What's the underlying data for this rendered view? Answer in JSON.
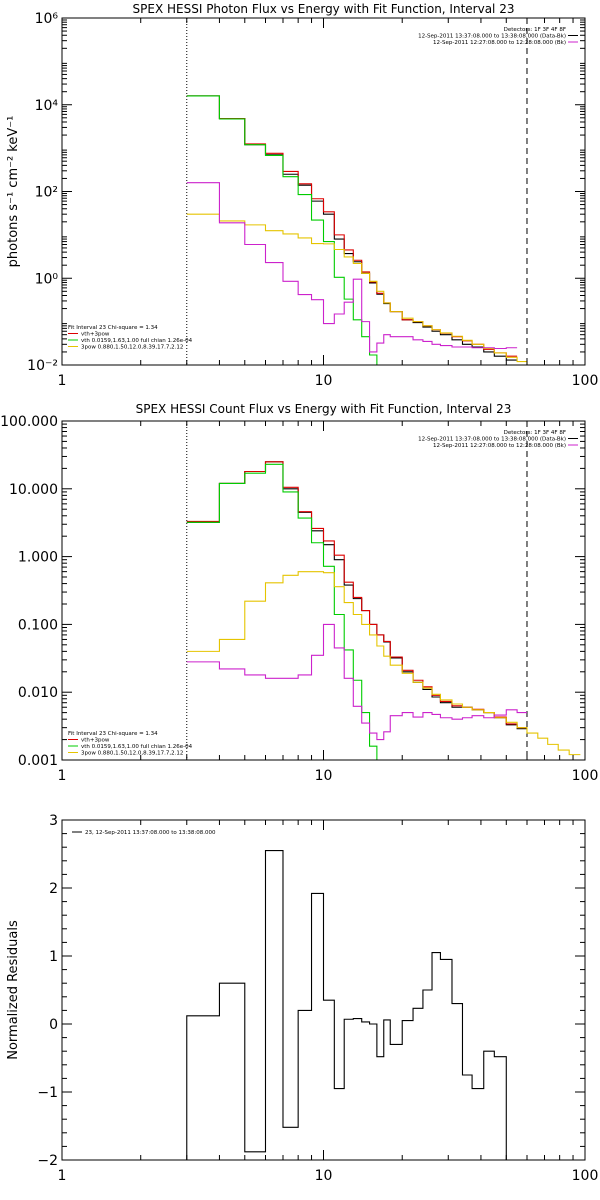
{
  "chart_data": [
    {
      "type": "line",
      "title": "SPEX HESSI Photon Flux vs Energy with Fit Function, Interval 23",
      "xlabel": "",
      "ylabel": "photons s⁻¹ cm⁻² keV⁻¹",
      "xscale": "log",
      "yscale": "log",
      "xlim": [
        1,
        100
      ],
      "ylim": [
        0.01,
        1000000
      ],
      "xticks": [
        1,
        10,
        100
      ],
      "xtick_labels": [
        "1",
        "10",
        "100"
      ],
      "yticks": [
        0.01,
        1,
        100,
        10000,
        1000000
      ],
      "ytick_labels": [
        "10⁻²",
        "10⁰",
        "10²",
        "10⁴",
        "10⁶"
      ],
      "vlines": [
        {
          "x": 3,
          "style": "dotted"
        },
        {
          "x": 60,
          "style": "dashed"
        }
      ],
      "header_lines": [
        "Detectors: 1F 3F 4F 8F",
        "12-Sep-2011 13:37:08.000 to 13:38:08.000 (Data-Bk)",
        "12-Sep-2011 12:27:08.000 to 12:28:08.000 (Bk)"
      ],
      "legend_lines": [
        "Fit Interval 23   Chi-square = 1.34",
        "vth+3pow",
        "vth 0.0159,1.63,1.00  full chian 1.26e-04",
        "3pow 0.880,1.50,12.0,8.39,17.7,2.12"
      ],
      "edges": [
        3,
        4,
        5,
        6,
        7,
        8,
        9,
        10,
        11,
        12,
        13,
        14,
        15,
        16,
        17,
        18,
        20,
        22,
        24,
        26,
        28,
        31,
        34,
        37,
        41,
        45,
        50,
        55,
        60,
        66,
        72,
        79
      ],
      "series": [
        {
          "name": "vth+3pow",
          "color": "#000000",
          "values": [
            16000,
            4800,
            1200,
            700,
            250,
            140,
            60,
            30,
            8,
            3.7,
            2.4,
            1.3,
            0.78,
            0.43,
            0.26,
            0.17,
            0.11,
            0.095,
            0.075,
            0.06,
            0.05,
            0.038,
            0.03,
            0.026,
            0.02,
            0.016,
            0.013
          ]
        },
        {
          "name": "",
          "color": "#dd0000",
          "values": [
            16000,
            4800,
            1250,
            760,
            290,
            150,
            68,
            34,
            10,
            4.5,
            2.6,
            1.4,
            0.82,
            0.45,
            0.27,
            0.17,
            0.11,
            0.1,
            0.08,
            0.065,
            0.054,
            0.045,
            0.036,
            0.03,
            0.023,
            0.019,
            0.016
          ]
        },
        {
          "name": "vth 0.0159,1.63,1.00  full chian 1.26e-04",
          "color": "#00cc00",
          "values": [
            16000,
            4700,
            1200,
            680,
            220,
            85,
            22,
            7,
            1.05,
            0.33,
            0.11,
            0.045,
            0.017,
            0.01,
            0.01
          ]
        },
        {
          "name": "3pow 0.880,1.50,12.0,8.39,17.7,2.12",
          "color": "#e5c400",
          "values": [
            30,
            21,
            17,
            12.5,
            10.5,
            8.5,
            6.3,
            6.2,
            4.6,
            3.1,
            2.2,
            1.3,
            0.85,
            0.5,
            0.27,
            0.17,
            0.12,
            0.1,
            0.08,
            0.065,
            0.055,
            0.046,
            0.037,
            0.03,
            0.024,
            0.019,
            0.015,
            0.012,
            0.01,
            0.008,
            0.0066
          ]
        },
        {
          "name": "",
          "color": "#cc22cc",
          "values": [
            160,
            19,
            6,
            2.3,
            0.85,
            0.42,
            0.32,
            0.09,
            0.15,
            0.28,
            0.95,
            0.1,
            0.02,
            0.032,
            0.05,
            0.045,
            0.045,
            0.038,
            0.035,
            0.03,
            0.028,
            0.026,
            0.026,
            0.025,
            0.025,
            0.024,
            0.025
          ]
        }
      ]
    },
    {
      "type": "line",
      "title": "SPEX HESSI Count Flux vs Energy with Fit Function, Interval 23",
      "xlabel": "",
      "ylabel": "",
      "xscale": "log",
      "yscale": "log",
      "xlim": [
        1,
        100
      ],
      "ylim": [
        0.001,
        100
      ],
      "xticks": [
        1,
        10,
        100
      ],
      "xtick_labels": [
        "1",
        "10",
        "100"
      ],
      "yticks": [
        0.001,
        0.01,
        0.1,
        1,
        10,
        100
      ],
      "ytick_labels": [
        "0.001",
        "0.010",
        "0.100",
        "1.000",
        "10.000",
        "100.000"
      ],
      "vlines": [
        {
          "x": 3,
          "style": "dotted"
        },
        {
          "x": 60,
          "style": "dashed"
        }
      ],
      "header_lines": [
        "Detectors: 1F 3F 4F 8F",
        "12-Sep-2011 13:37:08.000 to 13:38:08.000 (Data-Bk)",
        "12-Sep-2011 12:27:08.000 to 12:28:08.000 (Bk)"
      ],
      "legend_lines": [
        "Fit Interval 23   Chi-square = 1.34",
        "vth+3pow",
        "vth 0.0159,1.63,1.00  full chian 1.26e-04",
        "3pow 0.880,1.50,12.0,8.39,17.7,2.12"
      ],
      "edges": [
        3,
        4,
        5,
        6,
        7,
        8,
        9,
        10,
        11,
        12,
        13,
        14,
        15,
        16,
        17,
        18,
        20,
        22,
        24,
        26,
        28,
        31,
        34,
        37,
        41,
        45,
        50,
        55,
        60,
        66,
        72,
        79,
        87,
        96
      ],
      "series": [
        {
          "name": "vth+3pow",
          "color": "#000000",
          "values": [
            3.2,
            12,
            18,
            25,
            10,
            4.5,
            2.4,
            1.5,
            0.9,
            0.38,
            0.24,
            0.16,
            0.1,
            0.07,
            0.055,
            0.032,
            0.02,
            0.014,
            0.011,
            0.0085,
            0.007,
            0.006,
            0.006,
            0.0055,
            0.005,
            0.0042,
            0.0033,
            0.0029
          ]
        },
        {
          "name": "",
          "color": "#dd0000",
          "values": [
            3.3,
            12,
            18,
            25,
            10.5,
            4.6,
            2.6,
            1.7,
            1.05,
            0.42,
            0.25,
            0.16,
            0.1,
            0.07,
            0.056,
            0.033,
            0.021,
            0.015,
            0.012,
            0.009,
            0.0073,
            0.0063,
            0.006,
            0.0056,
            0.005,
            0.0043,
            0.0034,
            0.003
          ]
        },
        {
          "name": "vth 0.0159,1.63,1.00  full chian 1.26e-04",
          "color": "#00cc00",
          "values": [
            3.2,
            12,
            17,
            23,
            9,
            3.7,
            1.6,
            0.72,
            0.14,
            0.042,
            0.015,
            0.005,
            0.0016,
            0.001
          ]
        },
        {
          "name": "3pow 0.880,1.50,12.0,8.39,17.7,2.12",
          "color": "#e5c400",
          "values": [
            0.04,
            0.06,
            0.22,
            0.41,
            0.53,
            0.6,
            0.6,
            0.58,
            0.36,
            0.21,
            0.14,
            0.1,
            0.07,
            0.048,
            0.034,
            0.025,
            0.019,
            0.014,
            0.0115,
            0.0093,
            0.0077,
            0.0067,
            0.006,
            0.0055,
            0.005,
            0.0042,
            0.0036,
            0.003,
            0.0025,
            0.0021,
            0.0017,
            0.0014,
            0.0012
          ]
        },
        {
          "name": "",
          "color": "#cc22cc",
          "values": [
            0.028,
            0.022,
            0.018,
            0.016,
            0.016,
            0.018,
            0.035,
            0.1,
            0.045,
            0.016,
            0.0062,
            0.0035,
            0.0025,
            0.002,
            0.0026,
            0.0045,
            0.005,
            0.0043,
            0.005,
            0.0047,
            0.0042,
            0.004,
            0.0042,
            0.0045,
            0.0042,
            0.0046,
            0.0055,
            0.005
          ]
        }
      ]
    },
    {
      "type": "line",
      "title": "",
      "xlabel": "",
      "ylabel": "Normalized Residuals",
      "xscale": "log",
      "yscale": "linear",
      "xlim": [
        1,
        100
      ],
      "ylim": [
        -2,
        3
      ],
      "xticks": [
        1,
        10,
        100
      ],
      "xtick_labels": [
        "1",
        "10",
        "100"
      ],
      "yticks": [
        -2,
        -1,
        0,
        1,
        2,
        3
      ],
      "ytick_labels": [
        "−2",
        "−1",
        "0",
        "1",
        "2",
        "3"
      ],
      "legend_lines": [
        "23, 12-Sep-2011 13:37:08.000 to 13:38:08.000"
      ],
      "edges": [
        3,
        4,
        5,
        6,
        7,
        8,
        9,
        10,
        11,
        12,
        13,
        14,
        15,
        16,
        17,
        18,
        20,
        22,
        24,
        26,
        28,
        31,
        34,
        37,
        41,
        45,
        50,
        55,
        60
      ],
      "series": [
        {
          "name": "23, 12-Sep-2011 13:37:08.000 to 13:38:08.000",
          "color": "#000000",
          "values": [
            0.12,
            0.6,
            -1.88,
            2.55,
            -1.52,
            0.2,
            1.92,
            0.35,
            -0.95,
            0.07,
            0.08,
            0.03,
            0.0,
            -0.48,
            0.06,
            -0.3,
            0.05,
            0.23,
            0.5,
            1.05,
            0.95,
            0.3,
            -0.75,
            -0.95,
            -0.4,
            -0.48
          ]
        }
      ]
    }
  ]
}
